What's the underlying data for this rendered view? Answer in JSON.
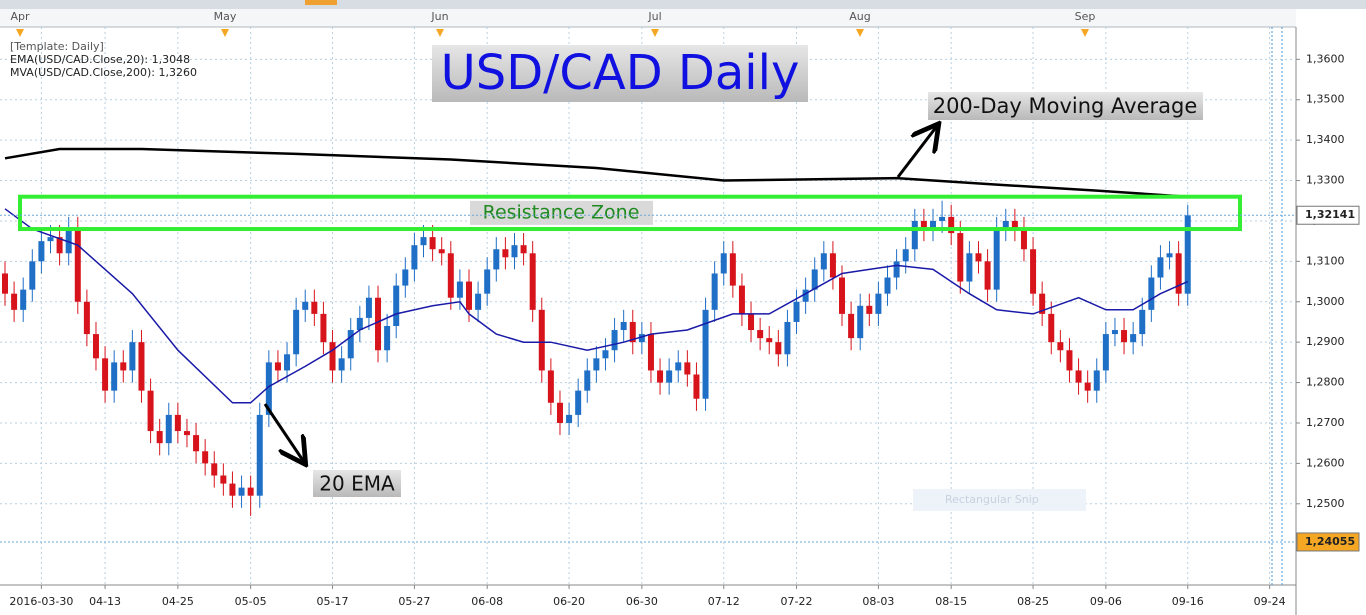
{
  "chart_data": {
    "type": "candlestick",
    "title": "USD/CAD Daily",
    "legend_title": "[Template: Daily]",
    "top_labels": [
      "Apr",
      "May",
      "Jun",
      "Jul",
      "Aug",
      "Sep"
    ],
    "annotations": {
      "ma200": "200-Day Moving Average",
      "ema20": "20 EMA",
      "snip": "Rectangular Snip"
    },
    "zone": {
      "label": "Resistance Zone",
      "top": 1.326,
      "bottom": 1.318,
      "color": "#33ee33"
    },
    "up_color": "#1f6fc6",
    "down_color": "#d7141c",
    "open": [
      1.307,
      1.302,
      1.298,
      1.303,
      1.31,
      1.315,
      1.316,
      1.312,
      1.318,
      1.3,
      1.292,
      1.286,
      1.278,
      1.285,
      1.283,
      1.29,
      1.278,
      1.268,
      1.265,
      1.272,
      1.268,
      1.267,
      1.263,
      1.26,
      1.257,
      1.255,
      1.252,
      1.254,
      1.252,
      1.272,
      1.285,
      1.283,
      1.287,
      1.298,
      1.3,
      1.297,
      1.29,
      1.283,
      1.286,
      1.293,
      1.296,
      1.301,
      1.288,
      1.294,
      1.304,
      1.308,
      1.314,
      1.316,
      1.313,
      1.312,
      1.301,
      1.305,
      1.298,
      1.302,
      1.308,
      1.313,
      1.311,
      1.314,
      1.312,
      1.298,
      1.283,
      1.275,
      1.27,
      1.272,
      1.278,
      1.283,
      1.286,
      1.288,
      1.293,
      1.295,
      1.29,
      1.292,
      1.283,
      1.28,
      1.283,
      1.285,
      1.282,
      1.276,
      1.298,
      1.307,
      1.312,
      1.304,
      1.297,
      1.293,
      1.291,
      1.29,
      1.287,
      1.295,
      1.3,
      1.303,
      1.308,
      1.312,
      1.306,
      1.297,
      1.291,
      1.299,
      1.297,
      1.302,
      1.306,
      1.31,
      1.313,
      1.32,
      1.318,
      1.32,
      1.321,
      1.317,
      1.305,
      1.312,
      1.31,
      1.303,
      1.318,
      1.32,
      1.318,
      1.313,
      1.302,
      1.297,
      1.29,
      1.288,
      1.283,
      1.28,
      1.278,
      1.283,
      1.292,
      1.293,
      1.29,
      1.292,
      1.298,
      1.306,
      1.311,
      1.312,
      1.302
    ],
    "high": [
      1.31,
      1.305,
      1.306,
      1.313,
      1.318,
      1.319,
      1.319,
      1.321,
      1.321,
      1.303,
      1.295,
      1.289,
      1.288,
      1.288,
      1.293,
      1.293,
      1.281,
      1.271,
      1.275,
      1.275,
      1.271,
      1.27,
      1.266,
      1.263,
      1.26,
      1.258,
      1.257,
      1.257,
      1.275,
      1.288,
      1.288,
      1.29,
      1.301,
      1.303,
      1.303,
      1.3,
      1.293,
      1.289,
      1.296,
      1.299,
      1.304,
      1.304,
      1.297,
      1.307,
      1.311,
      1.317,
      1.319,
      1.319,
      1.316,
      1.315,
      1.308,
      1.308,
      1.305,
      1.311,
      1.316,
      1.316,
      1.317,
      1.317,
      1.315,
      1.301,
      1.286,
      1.278,
      1.275,
      1.281,
      1.286,
      1.289,
      1.291,
      1.296,
      1.298,
      1.298,
      1.295,
      1.295,
      1.286,
      1.286,
      1.288,
      1.288,
      1.285,
      1.301,
      1.31,
      1.315,
      1.315,
      1.307,
      1.3,
      1.296,
      1.294,
      1.293,
      1.298,
      1.303,
      1.306,
      1.311,
      1.315,
      1.315,
      1.309,
      1.3,
      1.302,
      1.302,
      1.305,
      1.309,
      1.313,
      1.316,
      1.323,
      1.323,
      1.323,
      1.325,
      1.324,
      1.32,
      1.315,
      1.315,
      1.313,
      1.321,
      1.323,
      1.323,
      1.321,
      1.316,
      1.305,
      1.3,
      1.293,
      1.291,
      1.286,
      1.283,
      1.286,
      1.295,
      1.296,
      1.296,
      1.295,
      1.301,
      1.309,
      1.314,
      1.315,
      1.315,
      1.324
    ],
    "low": [
      1.299,
      1.295,
      1.295,
      1.3,
      1.307,
      1.312,
      1.309,
      1.309,
      1.297,
      1.289,
      1.283,
      1.275,
      1.275,
      1.28,
      1.28,
      1.275,
      1.265,
      1.262,
      1.262,
      1.265,
      1.264,
      1.26,
      1.257,
      1.254,
      1.252,
      1.249,
      1.249,
      1.247,
      1.249,
      1.269,
      1.28,
      1.28,
      1.284,
      1.295,
      1.294,
      1.287,
      1.28,
      1.28,
      1.283,
      1.29,
      1.293,
      1.285,
      1.285,
      1.291,
      1.301,
      1.305,
      1.311,
      1.31,
      1.309,
      1.298,
      1.298,
      1.295,
      1.295,
      1.299,
      1.305,
      1.308,
      1.308,
      1.309,
      1.295,
      1.28,
      1.272,
      1.267,
      1.267,
      1.269,
      1.275,
      1.28,
      1.283,
      1.285,
      1.29,
      1.287,
      1.287,
      1.28,
      1.277,
      1.277,
      1.28,
      1.279,
      1.273,
      1.273,
      1.295,
      1.304,
      1.301,
      1.294,
      1.29,
      1.288,
      1.287,
      1.284,
      1.284,
      1.292,
      1.297,
      1.3,
      1.305,
      1.303,
      1.294,
      1.288,
      1.288,
      1.294,
      1.294,
      1.299,
      1.303,
      1.307,
      1.31,
      1.315,
      1.315,
      1.317,
      1.314,
      1.302,
      1.302,
      1.307,
      1.3,
      1.3,
      1.315,
      1.315,
      1.31,
      1.299,
      1.294,
      1.287,
      1.285,
      1.28,
      1.277,
      1.275,
      1.275,
      1.28,
      1.289,
      1.287,
      1.287,
      1.289,
      1.295,
      1.303,
      1.308,
      1.299,
      1.299
    ],
    "close": [
      1.302,
      1.298,
      1.303,
      1.31,
      1.315,
      1.316,
      1.312,
      1.318,
      1.3,
      1.292,
      1.286,
      1.278,
      1.285,
      1.283,
      1.29,
      1.278,
      1.268,
      1.265,
      1.272,
      1.268,
      1.267,
      1.263,
      1.26,
      1.257,
      1.255,
      1.252,
      1.254,
      1.252,
      1.272,
      1.285,
      1.283,
      1.287,
      1.298,
      1.3,
      1.297,
      1.29,
      1.283,
      1.286,
      1.293,
      1.296,
      1.301,
      1.288,
      1.294,
      1.304,
      1.308,
      1.314,
      1.316,
      1.313,
      1.312,
      1.301,
      1.305,
      1.298,
      1.302,
      1.308,
      1.313,
      1.311,
      1.314,
      1.312,
      1.298,
      1.283,
      1.275,
      1.27,
      1.272,
      1.278,
      1.283,
      1.286,
      1.288,
      1.293,
      1.295,
      1.29,
      1.292,
      1.283,
      1.28,
      1.283,
      1.285,
      1.282,
      1.276,
      1.298,
      1.307,
      1.312,
      1.304,
      1.297,
      1.293,
      1.291,
      1.29,
      1.287,
      1.295,
      1.3,
      1.303,
      1.308,
      1.312,
      1.306,
      1.297,
      1.291,
      1.299,
      1.297,
      1.302,
      1.306,
      1.31,
      1.313,
      1.32,
      1.318,
      1.32,
      1.321,
      1.317,
      1.305,
      1.312,
      1.31,
      1.303,
      1.318,
      1.32,
      1.318,
      1.313,
      1.302,
      1.297,
      1.29,
      1.288,
      1.283,
      1.28,
      1.278,
      1.283,
      1.292,
      1.293,
      1.29,
      1.292,
      1.298,
      1.306,
      1.311,
      1.312,
      1.302,
      1.3214
    ],
    "lines": [
      {
        "name": "EMA(USD/CAD.Close,20): 1,3048",
        "color": "#1a1aa8",
        "x": [
          0,
          3,
          8,
          14,
          19,
          25,
          27,
          29,
          33,
          36,
          39,
          43,
          47,
          50,
          51,
          54,
          57,
          60,
          64,
          68,
          71,
          75,
          80,
          84,
          88,
          92,
          95,
          98,
          102,
          106,
          109,
          113,
          118,
          121,
          124,
          127,
          130
        ],
        "values": [
          1.323,
          1.318,
          1.314,
          1.302,
          1.288,
          1.275,
          1.275,
          1.279,
          1.284,
          1.288,
          1.293,
          1.297,
          1.299,
          1.3,
          1.297,
          1.292,
          1.29,
          1.29,
          1.288,
          1.29,
          1.292,
          1.293,
          1.297,
          1.297,
          1.302,
          1.307,
          1.308,
          1.309,
          1.308,
          1.302,
          1.298,
          1.297,
          1.301,
          1.298,
          1.298,
          1.302,
          1.305
        ]
      },
      {
        "name": "MVA(USD/CAD.Close,200): 1,3260",
        "color": "#000000",
        "x": [
          0,
          6,
          15,
          32,
          49,
          65,
          79,
          98,
          109,
          120,
          130
        ],
        "values": [
          1.3355,
          1.3378,
          1.3378,
          1.3366,
          1.3352,
          1.3331,
          1.33,
          1.3306,
          1.329,
          1.3275,
          1.326
        ]
      }
    ],
    "price_markers": [
      {
        "value": 1.32141,
        "label": "1,32141",
        "color": "#ffffff"
      },
      {
        "value": 1.24055,
        "label": "1,24055",
        "color": "#f5a623"
      }
    ],
    "xlim": [
      -0.55,
      141.9
    ],
    "xticks": [
      {
        "value": 4,
        "label": "2016-03-30"
      },
      {
        "value": 11,
        "label": "04-13"
      },
      {
        "value": 19,
        "label": "04-25"
      },
      {
        "value": 27,
        "label": "05-05"
      },
      {
        "value": 36,
        "label": "05-17"
      },
      {
        "value": 45,
        "label": "05-27"
      },
      {
        "value": 53,
        "label": "06-08"
      },
      {
        "value": 62,
        "label": "06-20"
      },
      {
        "value": 70,
        "label": "06-30"
      },
      {
        "value": 79,
        "label": "07-12"
      },
      {
        "value": 87,
        "label": "07-22"
      },
      {
        "value": 96,
        "label": "08-03"
      },
      {
        "value": 104,
        "label": "08-15"
      },
      {
        "value": 113,
        "label": "08-25"
      },
      {
        "value": 121,
        "label": "09-06"
      },
      {
        "value": 130,
        "label": "09-16"
      },
      {
        "value": 139,
        "label": "09-24"
      }
    ],
    "ylim": [
      1.2299,
      1.368
    ],
    "yticks": [
      {
        "value": 1.25,
        "label": "1,2500"
      },
      {
        "value": 1.26,
        "label": "1,2600"
      },
      {
        "value": 1.27,
        "label": "1,2700"
      },
      {
        "value": 1.28,
        "label": "1,2800"
      },
      {
        "value": 1.29,
        "label": "1,2900"
      },
      {
        "value": 1.3,
        "label": "1,3000"
      },
      {
        "value": 1.31,
        "label": "1,3100"
      },
      {
        "value": 1.32,
        "label": "1,3200"
      },
      {
        "value": 1.33,
        "label": "1,3300"
      },
      {
        "value": 1.34,
        "label": "1,3400"
      },
      {
        "value": 1.35,
        "label": "1,3500"
      },
      {
        "value": 1.36,
        "label": "1,3600"
      }
    ],
    "grid": true
  }
}
